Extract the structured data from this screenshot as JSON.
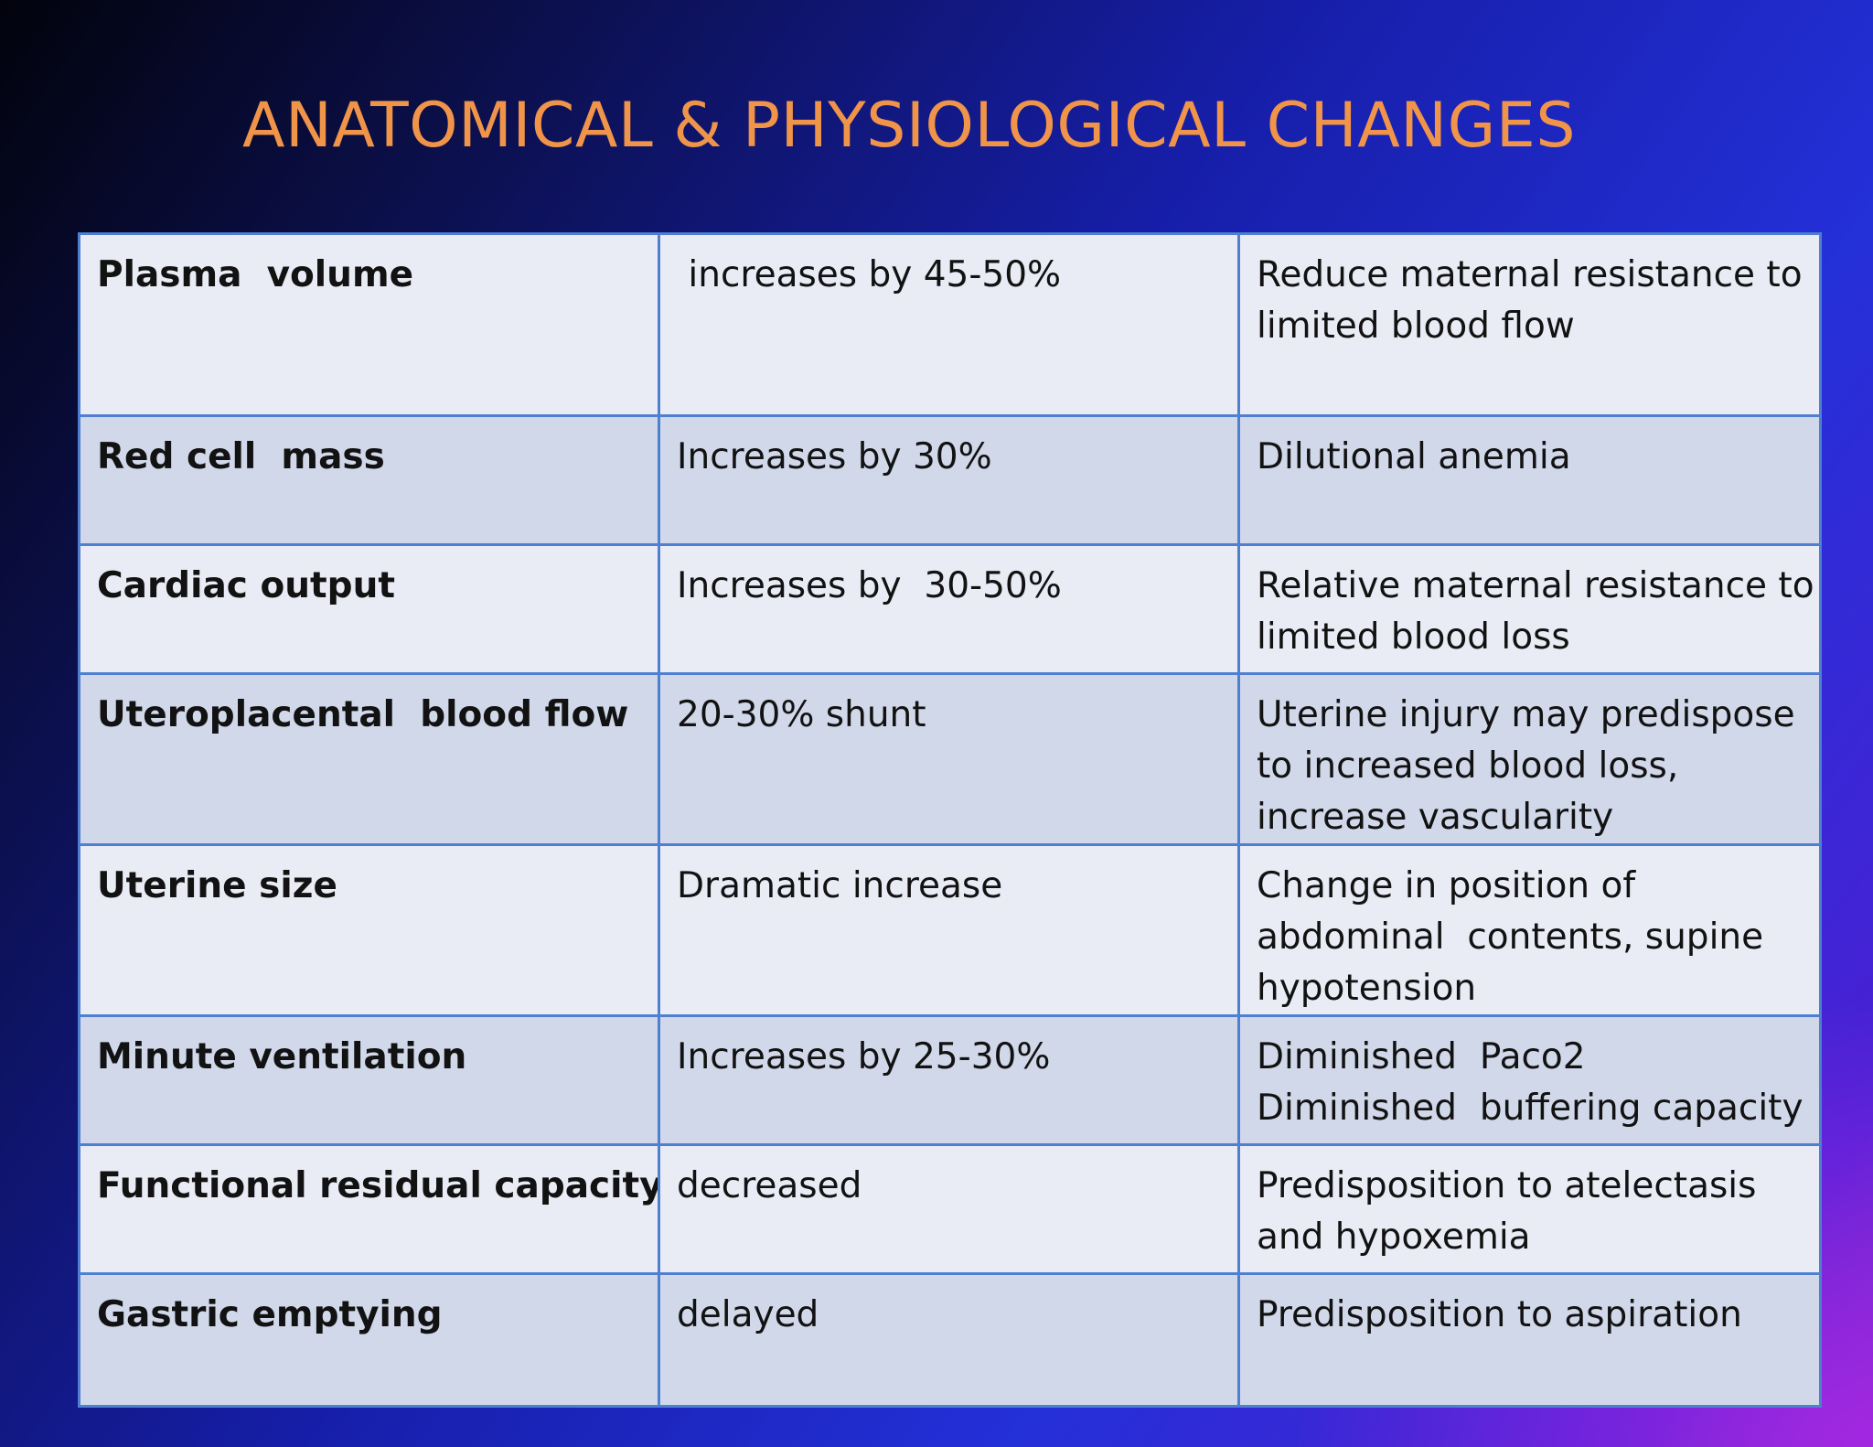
{
  "slide": {
    "title": "ANATOMICAL & PHYSIOLOGICAL CHANGES"
  },
  "table": {
    "rows": [
      {
        "parameter": "Plasma  volume",
        "change": " increases by 45-50%",
        "effect": [
          "Reduce maternal resistance to",
          "limited blood flow"
        ]
      },
      {
        "parameter": "Red cell  mass",
        "change": "Increases by 30%",
        "effect": [
          "Dilutional anemia"
        ]
      },
      {
        "parameter": "Cardiac output",
        "change": "Increases by  30-50%",
        "effect": [
          "Relative maternal resistance  to",
          "limited blood loss"
        ]
      },
      {
        "parameter": "Uteroplacental  blood flow",
        "change": "20-30% shunt",
        "effect": [
          "Uterine injury may predispose",
          "to increased blood loss,",
          "increase vascularity"
        ]
      },
      {
        "parameter": "Uterine size",
        "change": "Dramatic increase",
        "effect": [
          "Change in position of",
          "abdominal  contents, supine",
          "hypotension"
        ]
      },
      {
        "parameter": "Minute ventilation",
        "change": "Increases by 25-30%",
        "effect": [
          "Diminished  Paco2",
          "Diminished  buffering capacity"
        ]
      },
      {
        "parameter": "Functional residual capacity",
        "change": "decreased",
        "effect": [
          "Predisposition to atelectasis",
          "and hypoxemia"
        ]
      },
      {
        "parameter": "Gastric emptying",
        "change": "delayed",
        "effect": [
          "Predisposition to aspiration"
        ]
      }
    ]
  }
}
